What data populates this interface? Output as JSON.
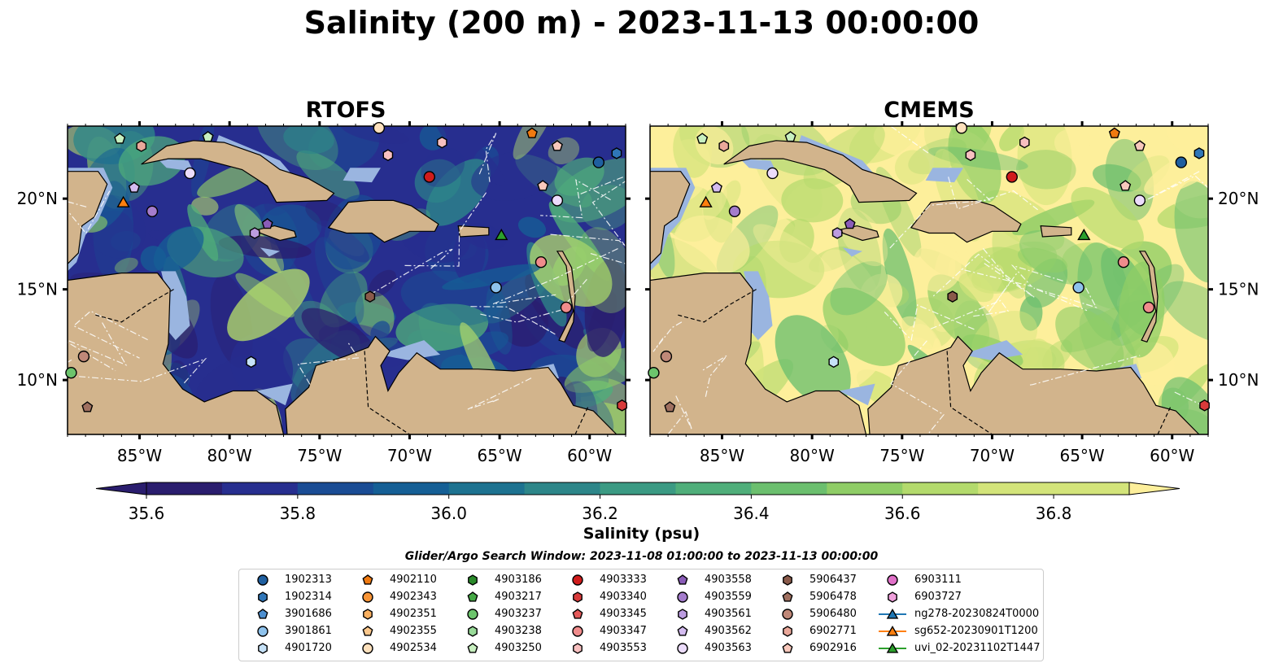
{
  "title": "Salinity (200 m) - 2023-11-13 00:00:00",
  "panels": [
    {
      "title": "RTOFS",
      "style": "fresh"
    },
    {
      "title": "CMEMS",
      "style": "salty"
    }
  ],
  "x_ticks": [
    "85°W",
    "80°W",
    "75°W",
    "70°W",
    "65°W",
    "60°W"
  ],
  "x_tick_values": [
    -85,
    -80,
    -75,
    -70,
    -65,
    -60
  ],
  "y_ticks": [
    "20°N",
    "15°N",
    "10°N"
  ],
  "y_tick_values": [
    20,
    15,
    10
  ],
  "map_extent": {
    "lon": [
      -89,
      -58
    ],
    "lat": [
      7,
      24
    ]
  },
  "colorbar": {
    "ticks": [
      "35.6",
      "35.8",
      "36.0",
      "36.2",
      "36.4",
      "36.6",
      "36.8"
    ],
    "tick_values": [
      35.6,
      35.8,
      36.0,
      36.2,
      36.4,
      36.6,
      36.8
    ],
    "range": [
      35.6,
      36.9
    ],
    "colors": [
      "#2a1d6e",
      "#272e8f",
      "#1a4c94",
      "#155f95",
      "#1d7290",
      "#2d8689",
      "#3b9a83",
      "#4fae7a",
      "#6bbf6e",
      "#8fcd66",
      "#b3da6c",
      "#d3e47a",
      "#fdef9b"
    ],
    "label": "Salinity (psu)"
  },
  "colors": {
    "land": "#d2b48c",
    "shelf": "#9ab5e0",
    "sea": "#36a284"
  },
  "search_window": "Glider/Argo Search Window: 2023-11-08 01:00:00 to 2023-11-13 00:00:00",
  "legend": [
    {
      "label": "1902313",
      "marker": "circle",
      "color": "#1f5fa0"
    },
    {
      "label": "1902314",
      "marker": "hexagon",
      "color": "#2f76b8"
    },
    {
      "label": "3901686",
      "marker": "pentagon",
      "color": "#4d8fd0"
    },
    {
      "label": "3901861",
      "marker": "circle",
      "color": "#8ec2ec"
    },
    {
      "label": "4901720",
      "marker": "hexagon",
      "color": "#c6e2f8"
    },
    {
      "label": "4902110",
      "marker": "pentagon",
      "color": "#f07a10"
    },
    {
      "label": "4902343",
      "marker": "circle",
      "color": "#f89436"
    },
    {
      "label": "4902351",
      "marker": "hexagon",
      "color": "#fab060"
    },
    {
      "label": "4902355",
      "marker": "pentagon",
      "color": "#fcc88c"
    },
    {
      "label": "4902534",
      "marker": "circle",
      "color": "#fde0bc"
    },
    {
      "label": "4903186",
      "marker": "hexagon",
      "color": "#2a8a2a"
    },
    {
      "label": "4903217",
      "marker": "pentagon",
      "color": "#45a845"
    },
    {
      "label": "4903237",
      "marker": "circle",
      "color": "#6cc46c"
    },
    {
      "label": "4903238",
      "marker": "hexagon",
      "color": "#98da98"
    },
    {
      "label": "4903250",
      "marker": "pentagon",
      "color": "#c8f0c0"
    },
    {
      "label": "4903333",
      "marker": "circle",
      "color": "#d01c1c"
    },
    {
      "label": "4903340",
      "marker": "hexagon",
      "color": "#d83a3a"
    },
    {
      "label": "4903345",
      "marker": "pentagon",
      "color": "#e45a5a"
    },
    {
      "label": "4903347",
      "marker": "circle",
      "color": "#f08c8c"
    },
    {
      "label": "4903553",
      "marker": "hexagon",
      "color": "#f8c0c0"
    },
    {
      "label": "4903558",
      "marker": "pentagon",
      "color": "#8a5cb8"
    },
    {
      "label": "4903559",
      "marker": "circle",
      "color": "#a47ccc"
    },
    {
      "label": "4903561",
      "marker": "hexagon",
      "color": "#bc9ce0"
    },
    {
      "label": "4903562",
      "marker": "pentagon",
      "color": "#d4bcf0"
    },
    {
      "label": "4903563",
      "marker": "circle",
      "color": "#ecdcfc"
    },
    {
      "label": "5906437",
      "marker": "hexagon",
      "color": "#8a5a4a"
    },
    {
      "label": "5906478",
      "marker": "pentagon",
      "color": "#a07060"
    },
    {
      "label": "5906480",
      "marker": "circle",
      "color": "#c08878"
    },
    {
      "label": "6902771",
      "marker": "hexagon",
      "color": "#eaa89a"
    },
    {
      "label": "6902916",
      "marker": "pentagon",
      "color": "#f8c8bc"
    },
    {
      "label": "6903111",
      "marker": "circle",
      "color": "#e070c8"
    },
    {
      "label": "6903727",
      "marker": "hexagon",
      "color": "#f0a0dc"
    },
    {
      "label": "ng278-20230824T0000",
      "marker": "triangle",
      "color": "#1f77b4"
    },
    {
      "label": "sg652-20230901T1200",
      "marker": "triangle",
      "color": "#ff7f0e"
    },
    {
      "label": "uvi_02-20231102T1447",
      "marker": "triangle",
      "color": "#2ca02c"
    }
  ],
  "floats": [
    {
      "lon": -59.5,
      "lat": 22.0,
      "id": "1902313"
    },
    {
      "lon": -58.5,
      "lat": 22.5,
      "id": "1902314"
    },
    {
      "lon": -65.2,
      "lat": 15.1,
      "id": "3901861"
    },
    {
      "lon": -78.8,
      "lat": 11.0,
      "id": "4901720"
    },
    {
      "lon": -63.2,
      "lat": 23.6,
      "id": "4902110"
    },
    {
      "lon": -71.7,
      "lat": 23.9,
      "id": "4902534"
    },
    {
      "lon": -88.8,
      "lat": 10.4,
      "id": "4903237"
    },
    {
      "lon": -86.1,
      "lat": 23.3,
      "id": "4903250"
    },
    {
      "lon": -81.2,
      "lat": 23.4,
      "id": "4903250"
    },
    {
      "lon": -68.9,
      "lat": 21.2,
      "id": "4903333"
    },
    {
      "lon": -58.2,
      "lat": 8.6,
      "id": "4903340"
    },
    {
      "lon": -62.7,
      "lat": 16.5,
      "id": "4903347"
    },
    {
      "lon": -61.3,
      "lat": 14.0,
      "id": "4903347"
    },
    {
      "lon": -68.2,
      "lat": 23.1,
      "id": "4903553"
    },
    {
      "lon": -71.2,
      "lat": 22.4,
      "id": "4903553"
    },
    {
      "lon": -77.9,
      "lat": 18.6,
      "id": "4903558"
    },
    {
      "lon": -84.3,
      "lat": 19.3,
      "id": "4903559"
    },
    {
      "lon": -78.6,
      "lat": 18.1,
      "id": "4903561"
    },
    {
      "lon": -85.3,
      "lat": 20.6,
      "id": "4903562"
    },
    {
      "lon": -82.2,
      "lat": 21.4,
      "id": "4903563"
    },
    {
      "lon": -72.2,
      "lat": 14.6,
      "id": "5906437"
    },
    {
      "lon": -87.9,
      "lat": 8.5,
      "id": "5906478"
    },
    {
      "lon": -88.1,
      "lat": 11.3,
      "id": "5906480"
    },
    {
      "lon": -84.9,
      "lat": 22.9,
      "id": "6902771"
    },
    {
      "lon": -61.8,
      "lat": 22.9,
      "id": "6902916"
    },
    {
      "lon": -62.6,
      "lat": 20.7,
      "id": "6902916"
    },
    {
      "lon": -61.8,
      "lat": 19.9,
      "id": "4903563"
    }
  ],
  "gliders": [
    {
      "lon": -85.9,
      "lat": 19.8,
      "id": "sg652-20230901T1200"
    },
    {
      "lon": -64.9,
      "lat": 18.0,
      "id": "uvi_02-20231102T1447"
    }
  ]
}
